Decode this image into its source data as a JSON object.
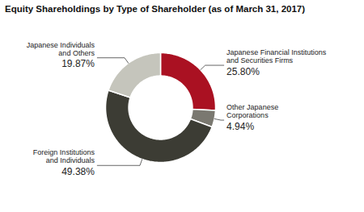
{
  "chart_data": {
    "type": "donut",
    "title": "Equity Shareholdings by Type of Shareholder (as of March 31, 2017)",
    "categories": [
      "Japanese Financial Institutions\nand Securities Firms",
      "Other Japanese\nCorporations",
      "Foreign Institutions\nand Individuals",
      "Japanese Individuals\nand Others"
    ],
    "values": [
      25.8,
      4.94,
      49.38,
      19.87
    ],
    "value_labels": [
      "25.80%",
      "4.94%",
      "49.38%",
      "19.87%"
    ],
    "colors": [
      "#aa1122",
      "#7a7870",
      "#3c3c34",
      "#c5c5bc"
    ],
    "data_labels": true
  }
}
